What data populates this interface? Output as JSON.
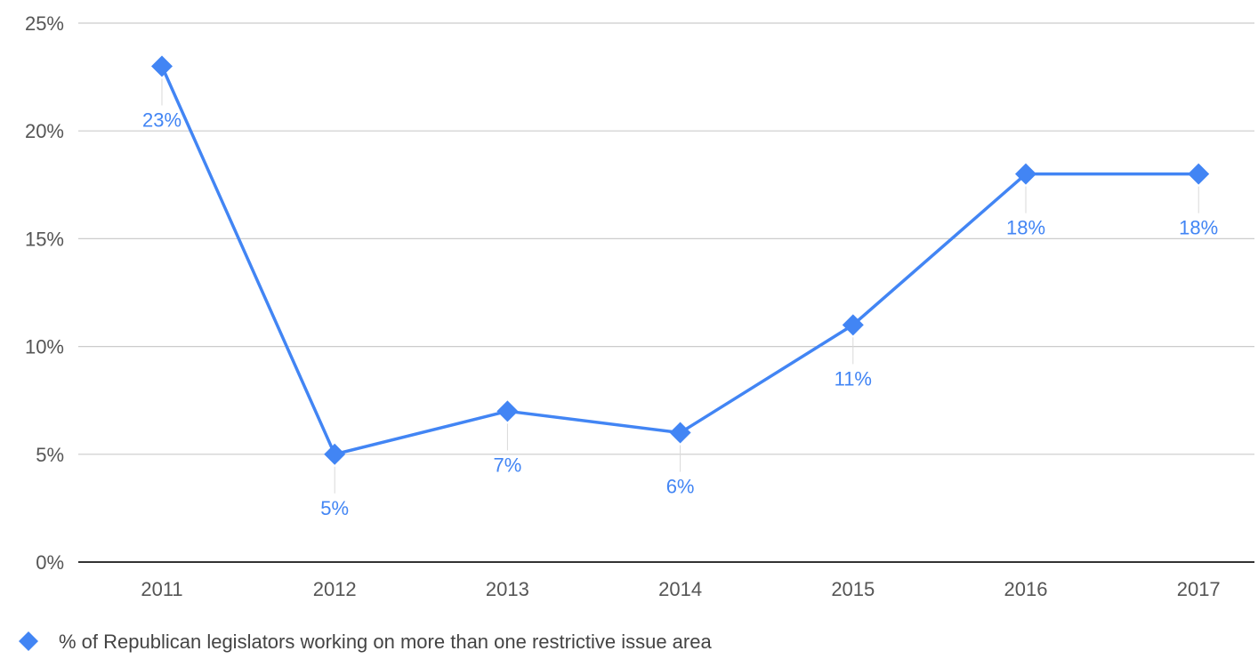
{
  "chart_data": {
    "type": "line",
    "categories": [
      "2011",
      "2012",
      "2013",
      "2014",
      "2015",
      "2016",
      "2017"
    ],
    "series": [
      {
        "name": "% of Republican legislators working on more than one restrictive issue area",
        "values": [
          23,
          5,
          7,
          6,
          11,
          18,
          18
        ]
      }
    ],
    "data_labels": [
      "23%",
      "5%",
      "7%",
      "6%",
      "11%",
      "18%",
      "18%"
    ],
    "y_ticks": [
      0,
      5,
      10,
      15,
      20,
      25
    ],
    "y_tick_labels": [
      "0%",
      "5%",
      "10%",
      "15%",
      "20%",
      "25%"
    ],
    "ylim": [
      0,
      25
    ],
    "grid": true,
    "legend": "bottom-left",
    "marker": "diamond",
    "colors": {
      "series": "#4285f4",
      "grid": "#cccccc",
      "baseline": "#333333",
      "tick_text": "#555555"
    }
  }
}
